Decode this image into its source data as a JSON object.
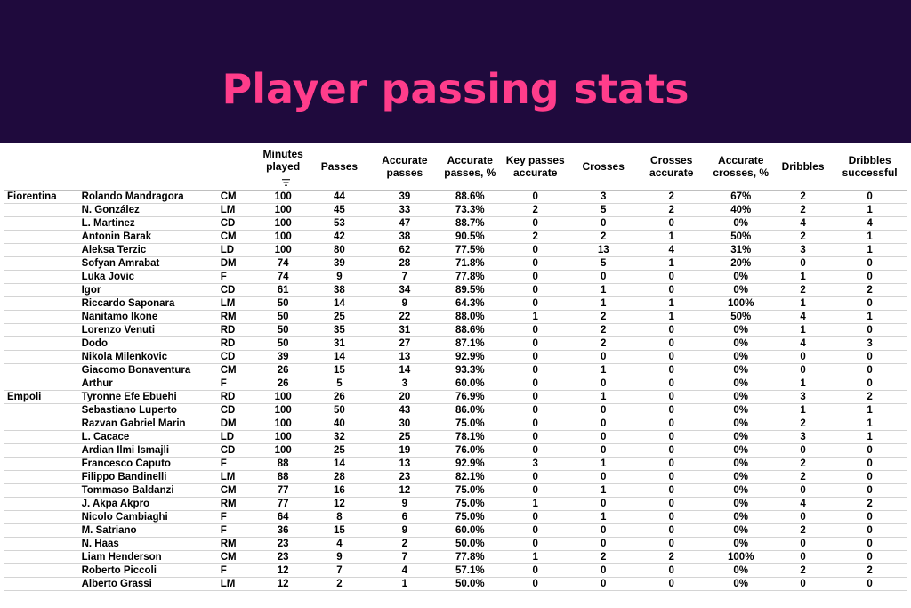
{
  "title": "Player passing stats",
  "columns": {
    "minutes": "Minutes played",
    "passes": "Passes",
    "accurate_passes": "Accurate passes",
    "accurate_passes_pct": "Accurate passes, %",
    "key_passes": "Key passes accurate",
    "crosses": "Crosses",
    "crosses_accurate": "Crosses accurate",
    "accurate_crosses_pct": "Accurate crosses, %",
    "dribbles": "Dribbles",
    "dribbles_successful": "Dribbles successful"
  },
  "sort_icon": "sort-descending-icon",
  "rows": [
    {
      "team": "Fiorentina",
      "player": "Rolando Mandragora",
      "pos": "CM",
      "min": "100",
      "passes": "44",
      "acc": "39",
      "accpct": "88.6%",
      "key": "0",
      "crosses": "3",
      "cacc": "2",
      "cpct": "67%",
      "drib": "2",
      "dsucc": "0"
    },
    {
      "team": "",
      "player": "N. González",
      "pos": "LM",
      "min": "100",
      "passes": "45",
      "acc": "33",
      "accpct": "73.3%",
      "key": "2",
      "crosses": "5",
      "cacc": "2",
      "cpct": "40%",
      "drib": "2",
      "dsucc": "1"
    },
    {
      "team": "",
      "player": "L. Martinez",
      "pos": "CD",
      "min": "100",
      "passes": "53",
      "acc": "47",
      "accpct": "88.7%",
      "key": "0",
      "crosses": "0",
      "cacc": "0",
      "cpct": "0%",
      "drib": "4",
      "dsucc": "4"
    },
    {
      "team": "",
      "player": "Antonin Barak",
      "pos": "CM",
      "min": "100",
      "passes": "42",
      "acc": "38",
      "accpct": "90.5%",
      "key": "2",
      "crosses": "2",
      "cacc": "1",
      "cpct": "50%",
      "drib": "2",
      "dsucc": "1"
    },
    {
      "team": "",
      "player": "Aleksa Terzic",
      "pos": "LD",
      "min": "100",
      "passes": "80",
      "acc": "62",
      "accpct": "77.5%",
      "key": "0",
      "crosses": "13",
      "cacc": "4",
      "cpct": "31%",
      "drib": "3",
      "dsucc": "1"
    },
    {
      "team": "",
      "player": "Sofyan Amrabat",
      "pos": "DM",
      "min": "74",
      "passes": "39",
      "acc": "28",
      "accpct": "71.8%",
      "key": "0",
      "crosses": "5",
      "cacc": "1",
      "cpct": "20%",
      "drib": "0",
      "dsucc": "0"
    },
    {
      "team": "",
      "player": "Luka Jovic",
      "pos": "F",
      "min": "74",
      "passes": "9",
      "acc": "7",
      "accpct": "77.8%",
      "key": "0",
      "crosses": "0",
      "cacc": "0",
      "cpct": "0%",
      "drib": "1",
      "dsucc": "0"
    },
    {
      "team": "",
      "player": "Igor",
      "pos": "CD",
      "min": "61",
      "passes": "38",
      "acc": "34",
      "accpct": "89.5%",
      "key": "0",
      "crosses": "1",
      "cacc": "0",
      "cpct": "0%",
      "drib": "2",
      "dsucc": "2"
    },
    {
      "team": "",
      "player": "Riccardo Saponara",
      "pos": "LM",
      "min": "50",
      "passes": "14",
      "acc": "9",
      "accpct": "64.3%",
      "key": "0",
      "crosses": "1",
      "cacc": "1",
      "cpct": "100%",
      "drib": "1",
      "dsucc": "0"
    },
    {
      "team": "",
      "player": "Nanitamo Ikone",
      "pos": "RM",
      "min": "50",
      "passes": "25",
      "acc": "22",
      "accpct": "88.0%",
      "key": "1",
      "crosses": "2",
      "cacc": "1",
      "cpct": "50%",
      "drib": "4",
      "dsucc": "1"
    },
    {
      "team": "",
      "player": "Lorenzo Venuti",
      "pos": "RD",
      "min": "50",
      "passes": "35",
      "acc": "31",
      "accpct": "88.6%",
      "key": "0",
      "crosses": "2",
      "cacc": "0",
      "cpct": "0%",
      "drib": "1",
      "dsucc": "0"
    },
    {
      "team": "",
      "player": "Dodo",
      "pos": "RD",
      "min": "50",
      "passes": "31",
      "acc": "27",
      "accpct": "87.1%",
      "key": "0",
      "crosses": "2",
      "cacc": "0",
      "cpct": "0%",
      "drib": "4",
      "dsucc": "3"
    },
    {
      "team": "",
      "player": "Nikola Milenkovic",
      "pos": "CD",
      "min": "39",
      "passes": "14",
      "acc": "13",
      "accpct": "92.9%",
      "key": "0",
      "crosses": "0",
      "cacc": "0",
      "cpct": "0%",
      "drib": "0",
      "dsucc": "0"
    },
    {
      "team": "",
      "player": "Giacomo Bonaventura",
      "pos": "CM",
      "min": "26",
      "passes": "15",
      "acc": "14",
      "accpct": "93.3%",
      "key": "0",
      "crosses": "1",
      "cacc": "0",
      "cpct": "0%",
      "drib": "0",
      "dsucc": "0"
    },
    {
      "team": "",
      "player": "Arthur",
      "pos": "F",
      "min": "26",
      "passes": "5",
      "acc": "3",
      "accpct": "60.0%",
      "key": "0",
      "crosses": "0",
      "cacc": "0",
      "cpct": "0%",
      "drib": "1",
      "dsucc": "0"
    },
    {
      "team": "Empoli",
      "player": "Tyronne Efe Ebuehi",
      "pos": "RD",
      "min": "100",
      "passes": "26",
      "acc": "20",
      "accpct": "76.9%",
      "key": "0",
      "crosses": "1",
      "cacc": "0",
      "cpct": "0%",
      "drib": "3",
      "dsucc": "2"
    },
    {
      "team": "",
      "player": "Sebastiano Luperto",
      "pos": "CD",
      "min": "100",
      "passes": "50",
      "acc": "43",
      "accpct": "86.0%",
      "key": "0",
      "crosses": "0",
      "cacc": "0",
      "cpct": "0%",
      "drib": "1",
      "dsucc": "1"
    },
    {
      "team": "",
      "player": "Razvan Gabriel Marin",
      "pos": "DM",
      "min": "100",
      "passes": "40",
      "acc": "30",
      "accpct": "75.0%",
      "key": "0",
      "crosses": "0",
      "cacc": "0",
      "cpct": "0%",
      "drib": "2",
      "dsucc": "1"
    },
    {
      "team": "",
      "player": "L. Cacace",
      "pos": "LD",
      "min": "100",
      "passes": "32",
      "acc": "25",
      "accpct": "78.1%",
      "key": "0",
      "crosses": "0",
      "cacc": "0",
      "cpct": "0%",
      "drib": "3",
      "dsucc": "1"
    },
    {
      "team": "",
      "player": "Ardian Ilmi Ismajli",
      "pos": "CD",
      "min": "100",
      "passes": "25",
      "acc": "19",
      "accpct": "76.0%",
      "key": "0",
      "crosses": "0",
      "cacc": "0",
      "cpct": "0%",
      "drib": "0",
      "dsucc": "0"
    },
    {
      "team": "",
      "player": "Francesco Caputo",
      "pos": "F",
      "min": "88",
      "passes": "14",
      "acc": "13",
      "accpct": "92.9%",
      "key": "3",
      "crosses": "1",
      "cacc": "0",
      "cpct": "0%",
      "drib": "2",
      "dsucc": "0"
    },
    {
      "team": "",
      "player": "Filippo Bandinelli",
      "pos": "LM",
      "min": "88",
      "passes": "28",
      "acc": "23",
      "accpct": "82.1%",
      "key": "0",
      "crosses": "0",
      "cacc": "0",
      "cpct": "0%",
      "drib": "2",
      "dsucc": "0"
    },
    {
      "team": "",
      "player": "Tommaso Baldanzi",
      "pos": "CM",
      "min": "77",
      "passes": "16",
      "acc": "12",
      "accpct": "75.0%",
      "key": "0",
      "crosses": "1",
      "cacc": "0",
      "cpct": "0%",
      "drib": "0",
      "dsucc": "0"
    },
    {
      "team": "",
      "player": "J. Akpa Akpro",
      "pos": "RM",
      "min": "77",
      "passes": "12",
      "acc": "9",
      "accpct": "75.0%",
      "key": "1",
      "crosses": "0",
      "cacc": "0",
      "cpct": "0%",
      "drib": "4",
      "dsucc": "2"
    },
    {
      "team": "",
      "player": "Nicolo Cambiaghi",
      "pos": "F",
      "min": "64",
      "passes": "8",
      "acc": "6",
      "accpct": "75.0%",
      "key": "0",
      "crosses": "1",
      "cacc": "0",
      "cpct": "0%",
      "drib": "0",
      "dsucc": "0"
    },
    {
      "team": "",
      "player": "M. Satriano",
      "pos": "F",
      "min": "36",
      "passes": "15",
      "acc": "9",
      "accpct": "60.0%",
      "key": "0",
      "crosses": "0",
      "cacc": "0",
      "cpct": "0%",
      "drib": "2",
      "dsucc": "0"
    },
    {
      "team": "",
      "player": "N. Haas",
      "pos": "RM",
      "min": "23",
      "passes": "4",
      "acc": "2",
      "accpct": "50.0%",
      "key": "0",
      "crosses": "0",
      "cacc": "0",
      "cpct": "0%",
      "drib": "0",
      "dsucc": "0"
    },
    {
      "team": "",
      "player": "Liam Henderson",
      "pos": "CM",
      "min": "23",
      "passes": "9",
      "acc": "7",
      "accpct": "77.8%",
      "key": "1",
      "crosses": "2",
      "cacc": "2",
      "cpct": "100%",
      "drib": "0",
      "dsucc": "0"
    },
    {
      "team": "",
      "player": "Roberto Piccoli",
      "pos": "F",
      "min": "12",
      "passes": "7",
      "acc": "4",
      "accpct": "57.1%",
      "key": "0",
      "crosses": "0",
      "cacc": "0",
      "cpct": "0%",
      "drib": "2",
      "dsucc": "2"
    },
    {
      "team": "",
      "player": "Alberto Grassi",
      "pos": "LM",
      "min": "12",
      "passes": "2",
      "acc": "1",
      "accpct": "50.0%",
      "key": "0",
      "crosses": "0",
      "cacc": "0",
      "cpct": "0%",
      "drib": "0",
      "dsucc": "0"
    }
  ]
}
